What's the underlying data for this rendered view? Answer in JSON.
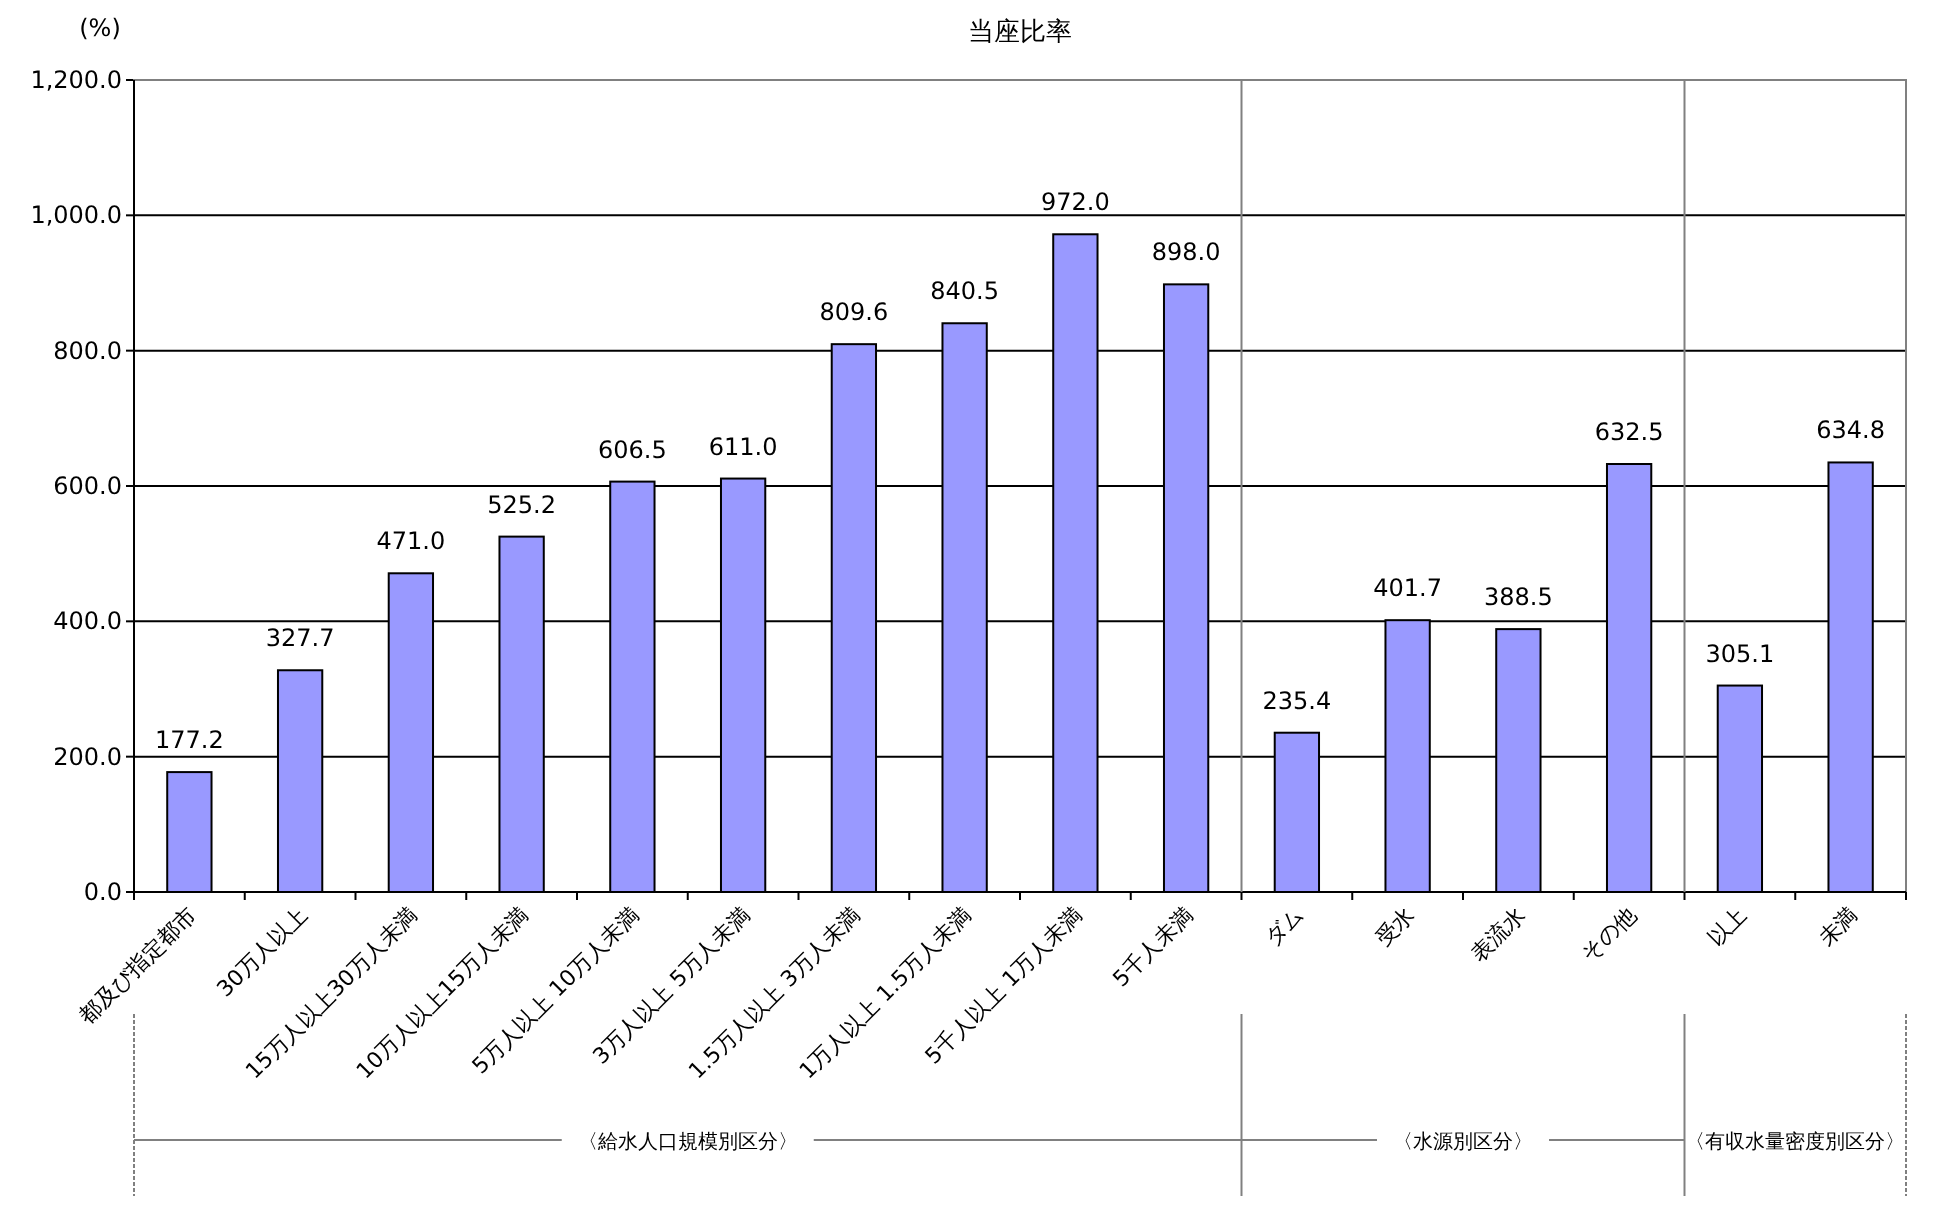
{
  "chart_data": {
    "type": "bar",
    "title": "当座比率",
    "ylabel": "(%)",
    "categories": [
      "都及び指定都市",
      "30万人以上",
      "15万人以上30万人未満",
      "10万人以上15万人未満",
      "5万人以上 10万人未満",
      "3万人以上 5万人未満",
      "1.5万人以上 3万人未満",
      "1万人以上 1.5万人未満",
      "5千人以上 1万人未満",
      "5千人未満",
      "ダム",
      "受水",
      "表流水",
      "その他",
      "以上",
      "未満"
    ],
    "values": [
      177.2,
      327.7,
      471.0,
      525.2,
      606.5,
      611.0,
      809.6,
      840.5,
      972.0,
      898.0,
      235.4,
      401.7,
      388.5,
      632.5,
      305.1,
      634.8
    ],
    "color": "#9999ff",
    "ylim": [
      0,
      1200
    ],
    "yticks": [
      {
        "value": 0,
        "label": "0.0"
      },
      {
        "value": 200,
        "label": "200.0"
      },
      {
        "value": 400,
        "label": "400.0"
      },
      {
        "value": 600,
        "label": "600.0"
      },
      {
        "value": 800,
        "label": "800.0"
      },
      {
        "value": 1000,
        "label": "1,000.0"
      },
      {
        "value": 1200,
        "label": "1,200.0"
      }
    ],
    "grid": "y",
    "value_labels": [
      "177.2",
      "327.7",
      "471.0",
      "525.2",
      "606.5",
      "611.0",
      "809.6",
      "840.5",
      "972.0",
      "898.0",
      "235.4",
      "401.7",
      "388.5",
      "632.5",
      "305.1",
      "634.8"
    ],
    "annotations": [
      "〈給水人口規模別区分〉",
      "〈水源別区分〉",
      "〈有収水量密度別区分〉"
    ]
  }
}
